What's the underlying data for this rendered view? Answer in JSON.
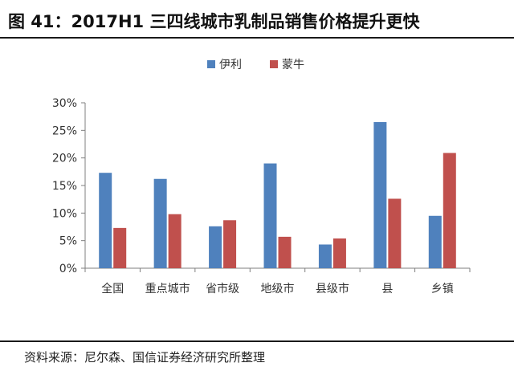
{
  "header": {
    "title": "图 41：2017H1 三四线城市乳制品销售价格提升更快"
  },
  "footer": {
    "source": "资料来源：尼尔森、国信证券经济研究所整理"
  },
  "colors": {
    "series_1": "#4f81bd",
    "series_2": "#c0504d",
    "axis": "#7f7f7f"
  },
  "chart_data": {
    "type": "bar",
    "title": "",
    "xlabel": "",
    "ylabel": "",
    "categories": [
      "全国",
      "重点城市",
      "省市级",
      "地级市",
      "县级市",
      "县",
      "乡镇"
    ],
    "series": [
      {
        "name": "伊利",
        "values": [
          17.3,
          16.2,
          7.6,
          19.0,
          4.3,
          26.5,
          9.5
        ]
      },
      {
        "name": "蒙牛",
        "values": [
          7.3,
          9.8,
          8.7,
          5.7,
          5.4,
          12.6,
          20.9
        ]
      }
    ],
    "ylim": [
      0,
      30
    ],
    "yticks": [
      "0%",
      "5%",
      "10%",
      "15%",
      "20%",
      "25%",
      "30%"
    ],
    "grid": false,
    "legend_position": "top-center"
  }
}
